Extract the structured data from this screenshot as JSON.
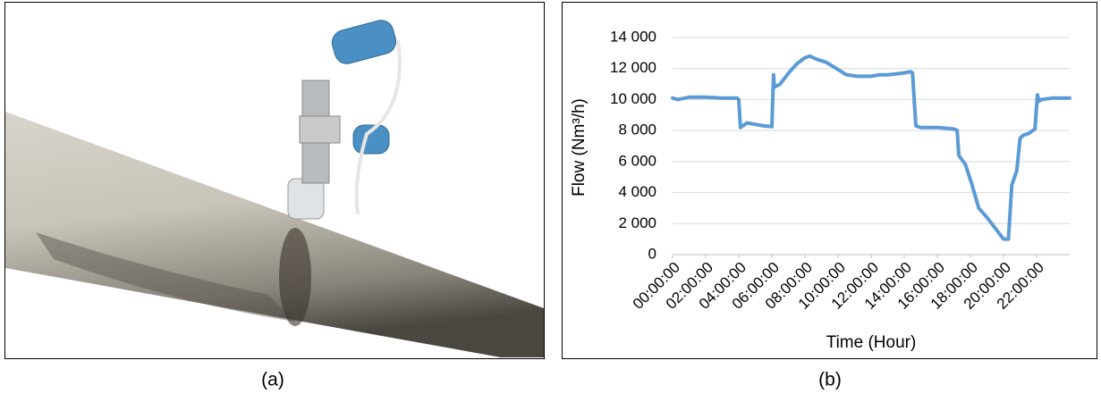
{
  "captions": [
    "(a)",
    "(b)"
  ],
  "chart_data": {
    "type": "line",
    "x_label": "Time (Hour)",
    "y_label": "Flow (Nm³/h)",
    "x": [
      0,
      0.3,
      1,
      2,
      3,
      3.9,
      4.0,
      4.1,
      4.5,
      5,
      5.5,
      6.0,
      6.1,
      6.15,
      6.5,
      7,
      7.5,
      8,
      8.3,
      8.7,
      9.3,
      9.9,
      10.5,
      11.2,
      12,
      12.5,
      13,
      13.9,
      14.4,
      14.5,
      14.7,
      15,
      16,
      17,
      17.2,
      17.3,
      17.7,
      18.1,
      18.5,
      19,
      19.5,
      20,
      20.3,
      20.5,
      20.8,
      21,
      21.2,
      21.5,
      21.9,
      22.05,
      22.15,
      22.3,
      23,
      24
    ],
    "values": [
      10100,
      10000,
      10150,
      10150,
      10100,
      10100,
      10000,
      8200,
      8500,
      8400,
      8300,
      8250,
      11600,
      10800,
      11000,
      11700,
      12300,
      12700,
      12800,
      12600,
      12400,
      12000,
      11600,
      11500,
      11500,
      11600,
      11600,
      11700,
      11800,
      11700,
      8300,
      8200,
      8200,
      8100,
      8000,
      6400,
      5800,
      4500,
      3000,
      2400,
      1700,
      1000,
      1000,
      4500,
      5400,
      7500,
      7700,
      7800,
      8100,
      10300,
      9900,
      10000,
      10100,
      10100
    ],
    "color": "#5b9bd5",
    "xlim": [
      0,
      24
    ],
    "xticks": [
      {
        "value": 0,
        "label": "00:00:00"
      },
      {
        "value": 2,
        "label": "02:00:00"
      },
      {
        "value": 4,
        "label": "04:00:00"
      },
      {
        "value": 6,
        "label": "06:00:00"
      },
      {
        "value": 8,
        "label": "08:00:00"
      },
      {
        "value": 10,
        "label": "10:00:00"
      },
      {
        "value": 12,
        "label": "12:00:00"
      },
      {
        "value": 14,
        "label": "14:00:00"
      },
      {
        "value": 16,
        "label": "16:00:00"
      },
      {
        "value": 18,
        "label": "18:00:00"
      },
      {
        "value": 20,
        "label": "20:00:00"
      },
      {
        "value": 22,
        "label": "22:00:00"
      }
    ],
    "ylim": [
      0,
      14000
    ],
    "yticks": [
      0,
      {
        "value": 2000,
        "label": "2 000"
      },
      {
        "value": 4000,
        "label": "4 000"
      },
      {
        "value": 6000,
        "label": "6 000"
      },
      {
        "value": 8000,
        "label": "8 000"
      },
      {
        "value": 10000,
        "label": "10 000"
      },
      {
        "value": 12000,
        "label": "12 000"
      },
      {
        "value": 14000,
        "label": "14 000"
      }
    ],
    "grid": true
  }
}
